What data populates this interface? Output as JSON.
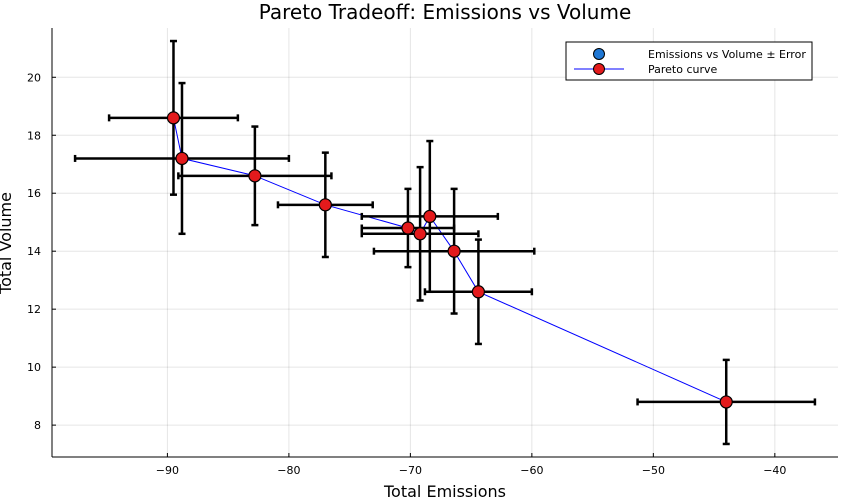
{
  "chart_data": {
    "type": "scatter",
    "title": "Pareto Tradeoff: Emissions vs Volume",
    "xlabel": "Total Emissions",
    "ylabel": "Total Volume",
    "xlim": [
      -99.5,
      -34.8
    ],
    "ylim": [
      6.9,
      21.7
    ],
    "xticks": [
      -90,
      -80,
      -70,
      -60,
      -50,
      -40
    ],
    "xtick_labels": [
      "−90",
      "−80",
      "−70",
      "−60",
      "−50",
      "−40"
    ],
    "yticks": [
      8,
      10,
      12,
      14,
      16,
      18,
      20
    ],
    "ytick_labels": [
      "8",
      "10",
      "12",
      "14",
      "16",
      "18",
      "20"
    ],
    "grid": true,
    "legend_position": "top-right",
    "series": [
      {
        "name": "Emissions vs Volume ± Error",
        "kind": "scatter-errorbars",
        "color": "#1f77d4",
        "points": [
          {
            "x": -89.5,
            "y": 18.6,
            "xerr": 5.3,
            "yerr": 2.65
          },
          {
            "x": -88.8,
            "y": 17.2,
            "xerr": 8.8,
            "yerr": 2.6
          },
          {
            "x": -82.8,
            "y": 16.6,
            "xerr": 6.3,
            "yerr": 1.7
          },
          {
            "x": -77.0,
            "y": 15.6,
            "xerr": 3.9,
            "yerr": 1.8
          },
          {
            "x": -70.2,
            "y": 14.8,
            "xerr": 3.8,
            "yerr": 1.35
          },
          {
            "x": -69.2,
            "y": 14.6,
            "xerr": 4.8,
            "yerr": 2.3
          },
          {
            "x": -68.4,
            "y": 15.2,
            "xerr": 5.6,
            "yerr": 2.6
          },
          {
            "x": -66.4,
            "y": 14.0,
            "xerr": 6.6,
            "yerr": 2.15
          },
          {
            "x": -64.4,
            "y": 12.6,
            "xerr": 4.4,
            "yerr": 1.8
          },
          {
            "x": -44.0,
            "y": 8.8,
            "xerr": 7.3,
            "yerr": 1.45
          }
        ]
      },
      {
        "name": "Pareto curve",
        "kind": "line-markers",
        "color": "#0000ff",
        "marker_color": "#e31a1c",
        "points": [
          {
            "x": -89.5,
            "y": 18.6
          },
          {
            "x": -88.8,
            "y": 17.2
          },
          {
            "x": -82.8,
            "y": 16.6
          },
          {
            "x": -77.0,
            "y": 15.6
          },
          {
            "x": -70.2,
            "y": 14.8
          },
          {
            "x": -69.2,
            "y": 14.6
          },
          {
            "x": -68.4,
            "y": 15.2
          },
          {
            "x": -66.4,
            "y": 14.0
          },
          {
            "x": -64.4,
            "y": 12.6
          },
          {
            "x": -44.0,
            "y": 8.8
          }
        ]
      }
    ]
  }
}
